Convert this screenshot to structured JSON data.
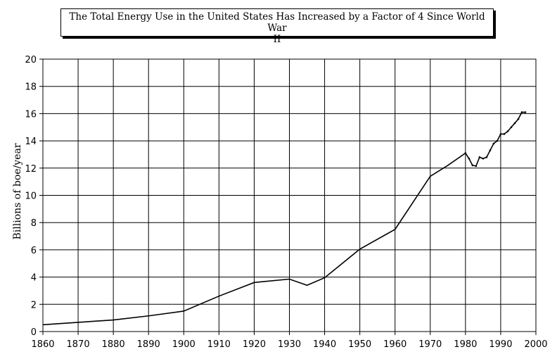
{
  "chart_data": {
    "type": "line",
    "title_line1": "The Total Energy Use in the United States Has Increased by a Factor of 4 Since World War",
    "title_line2": "II",
    "xlabel": "",
    "ylabel": "Billions of boe/year",
    "xlim": [
      1860,
      2000
    ],
    "ylim": [
      0,
      20
    ],
    "x_ticks": [
      "1860",
      "1870",
      "1880",
      "1890",
      "1900",
      "1910",
      "1920",
      "1930",
      "1940",
      "1950",
      "1960",
      "1970",
      "1980",
      "1990",
      "2000"
    ],
    "y_ticks": [
      "0",
      "2",
      "4",
      "6",
      "8",
      "10",
      "12",
      "14",
      "16",
      "18",
      "20"
    ],
    "grid": true,
    "series": [
      {
        "x": [
          1860,
          1880,
          1890,
          1900,
          1910,
          1920,
          1930,
          1935,
          1940,
          1950,
          1960,
          1970,
          1975,
          1980,
          1981,
          1982,
          1983,
          1984,
          1985,
          1986,
          1987,
          1988,
          1989,
          1990,
          1991,
          1992,
          1993,
          1994,
          1995,
          1996,
          1997
        ],
        "y": [
          0.5,
          0.85,
          1.15,
          1.5,
          2.6,
          3.6,
          3.85,
          3.4,
          3.95,
          6.05,
          7.5,
          11.4,
          12.2,
          13.1,
          12.7,
          12.2,
          12.15,
          12.8,
          12.7,
          12.8,
          13.3,
          13.8,
          14.0,
          14.5,
          14.5,
          14.7,
          15.0,
          15.3,
          15.6,
          16.1,
          16.1
        ]
      }
    ],
    "line_color": "#000000"
  }
}
